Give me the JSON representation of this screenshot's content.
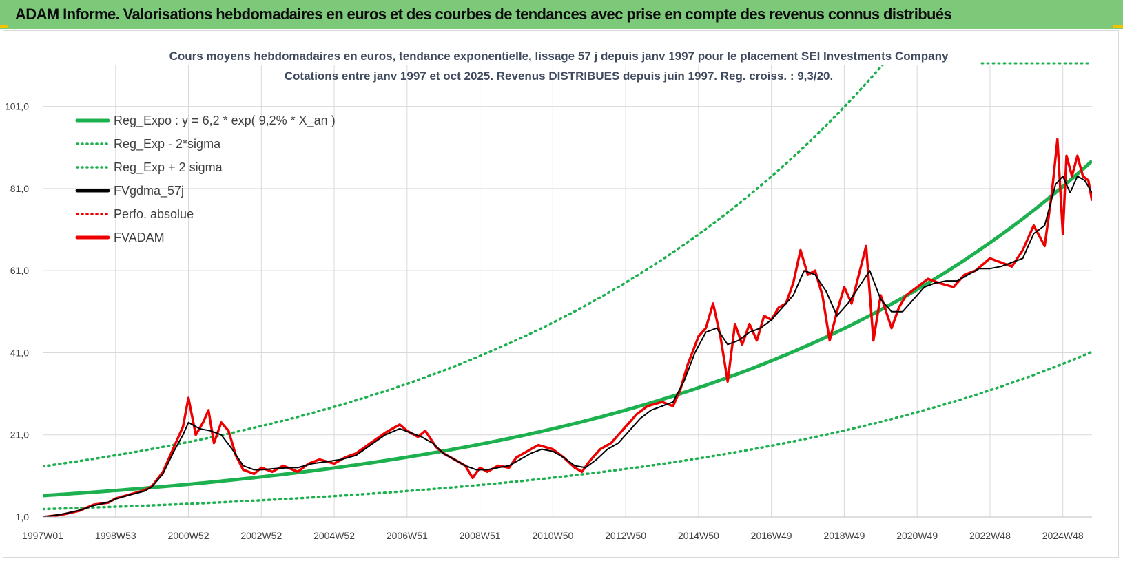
{
  "banner": {
    "title": "ADAM Informe. Valorisations hebdomadaires en euros et des courbes de tendances avec prise en compte des revenus connus distribués"
  },
  "colors": {
    "banner_bg": "#7dc97a",
    "reg_green": "#1cb04e",
    "series_red": "#ee0000",
    "series_black": "#000000",
    "grid": "#d9d9d9"
  },
  "chart_data": {
    "type": "line",
    "title_line1": "Cours moyens hebdomadaires en euros, tendance exponentielle, lissage 57 j depuis janv 1997 pour le placement SEI Investments Company",
    "title_line2": "Cotations entre janv 1997 et oct 2025. Revenus DISTRIBUES depuis juin 1997. Reg. croiss. : 9,3/20.",
    "xlabel": "",
    "ylabel": "",
    "ylim": [
      1,
      111
    ],
    "xlim": [
      1997.0,
      2025.8
    ],
    "yticks": [
      "1,0",
      "21,0",
      "41,0",
      "61,0",
      "81,0",
      "101,0"
    ],
    "ytick_values": [
      1,
      21,
      41,
      61,
      81,
      101
    ],
    "xticks": [
      "1997W01",
      "1998W53",
      "2000W52",
      "2002W52",
      "2004W52",
      "2006W51",
      "2008W51",
      "2010W50",
      "2012W50",
      "2014W50",
      "2016W49",
      "2018W49",
      "2020W49",
      "2022W48",
      "2024W48"
    ],
    "xtick_values": [
      1997.0,
      1999.0,
      2001.0,
      2003.0,
      2005.0,
      2007.0,
      2009.0,
      2011.0,
      2013.0,
      2015.0,
      2017.0,
      2019.0,
      2021.0,
      2023.0,
      2025.0
    ],
    "grid": true,
    "legend_position": "top-left",
    "legend": [
      {
        "label": "Reg_Expo : y = 6,2 * exp( 9,2% *  X_an )",
        "style": "solid",
        "color": "#1cb04e"
      },
      {
        "label": "Reg_Exp - 2*sigma",
        "style": "dotted",
        "color": "#1cb04e"
      },
      {
        "label": "Reg_Exp + 2 sigma",
        "style": "dotted",
        "color": "#1cb04e"
      },
      {
        "label": "FVgdma_57j",
        "style": "solid",
        "color": "#000000"
      },
      {
        "label": "Perfo. absolue",
        "style": "dotted",
        "color": "#ee0000"
      },
      {
        "label": "FVADAM",
        "style": "solid",
        "color": "#ee0000"
      }
    ],
    "regression": {
      "a": 6.2,
      "b": 0.092,
      "x0": 1997.0,
      "lower_factor": 0.47,
      "upper_factor": 2.15
    },
    "fvadam": {
      "x": [
        1997.0,
        1997.5,
        1998.0,
        1998.4,
        1998.8,
        1999.0,
        1999.4,
        1999.8,
        2000.0,
        2000.3,
        2000.6,
        2000.85,
        2001.0,
        2001.2,
        2001.4,
        2001.55,
        2001.7,
        2001.9,
        2002.1,
        2002.3,
        2002.5,
        2002.8,
        2003.0,
        2003.3,
        2003.6,
        2004.0,
        2004.3,
        2004.6,
        2005.0,
        2005.3,
        2005.6,
        2006.0,
        2006.4,
        2006.8,
        2007.0,
        2007.3,
        2007.5,
        2007.8,
        2008.0,
        2008.3,
        2008.6,
        2008.8,
        2009.0,
        2009.2,
        2009.5,
        2009.8,
        2010.0,
        2010.3,
        2010.6,
        2011.0,
        2011.3,
        2011.6,
        2011.8,
        2012.0,
        2012.3,
        2012.6,
        2013.0,
        2013.3,
        2013.6,
        2014.0,
        2014.3,
        2014.5,
        2014.7,
        2015.0,
        2015.2,
        2015.4,
        2015.6,
        2015.8,
        2016.0,
        2016.2,
        2016.4,
        2016.6,
        2016.8,
        2017.0,
        2017.2,
        2017.4,
        2017.6,
        2017.8,
        2018.0,
        2018.2,
        2018.4,
        2018.6,
        2018.8,
        2019.0,
        2019.2,
        2019.4,
        2019.6,
        2019.8,
        2020.0,
        2020.15,
        2020.3,
        2020.5,
        2020.7,
        2021.0,
        2021.3,
        2021.6,
        2022.0,
        2022.3,
        2022.6,
        2023.0,
        2023.3,
        2023.6,
        2023.9,
        2024.2,
        2024.5,
        2024.7,
        2024.85,
        2025.0,
        2025.1,
        2025.25,
        2025.4,
        2025.55,
        2025.7,
        2025.8
      ],
      "values": [
        1.0,
        1.5,
        2.5,
        4.0,
        4.5,
        5.5,
        6.5,
        7.5,
        8.5,
        12.0,
        18.0,
        23.0,
        30.0,
        21.0,
        24.0,
        27.0,
        19.0,
        24.0,
        22.0,
        16.0,
        12.5,
        11.5,
        13.0,
        12.0,
        13.5,
        12.0,
        14.0,
        15.0,
        14.0,
        15.5,
        16.5,
        19.0,
        21.5,
        23.5,
        22.0,
        20.5,
        22.0,
        18.0,
        16.5,
        15.0,
        13.5,
        10.5,
        13.0,
        12.0,
        13.5,
        13.0,
        15.5,
        17.0,
        18.5,
        17.5,
        15.5,
        13.0,
        12.0,
        14.5,
        17.5,
        19.0,
        23.0,
        26.0,
        28.0,
        29.0,
        28.0,
        32.0,
        38.0,
        45.0,
        47.0,
        53.0,
        45.0,
        34.0,
        48.0,
        43.0,
        48.0,
        44.0,
        50.0,
        49.0,
        52.0,
        53.0,
        58.0,
        66.0,
        60.0,
        61.0,
        55.0,
        44.0,
        51.0,
        57.0,
        53.0,
        60.0,
        67.0,
        44.0,
        55.0,
        51.0,
        47.0,
        52.0,
        55.0,
        57.0,
        59.0,
        58.0,
        57.0,
        60.0,
        61.0,
        64.0,
        63.0,
        62.0,
        66.0,
        72.0,
        67.0,
        80.0,
        93.0,
        70.0,
        89.0,
        84.0,
        89.0,
        84.0,
        83.0,
        78.0
      ]
    },
    "fvgdma_57j": {
      "x": [
        1997.0,
        1997.5,
        1998.0,
        1998.4,
        1998.8,
        1999.0,
        1999.4,
        1999.8,
        2000.0,
        2000.3,
        2000.6,
        2000.85,
        2001.0,
        2001.3,
        2001.6,
        2001.9,
        2002.2,
        2002.5,
        2002.8,
        2003.0,
        2003.4,
        2003.8,
        2004.0,
        2004.4,
        2004.8,
        2005.2,
        2005.6,
        2006.0,
        2006.4,
        2006.8,
        2007.1,
        2007.4,
        2007.7,
        2008.0,
        2008.3,
        2008.6,
        2008.9,
        2009.2,
        2009.5,
        2009.8,
        2010.1,
        2010.4,
        2010.7,
        2011.0,
        2011.3,
        2011.6,
        2011.9,
        2012.2,
        2012.5,
        2012.8,
        2013.1,
        2013.4,
        2013.7,
        2014.0,
        2014.3,
        2014.6,
        2014.9,
        2015.2,
        2015.5,
        2015.8,
        2016.1,
        2016.4,
        2016.7,
        2017.0,
        2017.3,
        2017.6,
        2017.9,
        2018.2,
        2018.5,
        2018.8,
        2019.1,
        2019.4,
        2019.7,
        2020.0,
        2020.3,
        2020.6,
        2020.9,
        2021.2,
        2021.5,
        2021.8,
        2022.1,
        2022.4,
        2022.7,
        2023.0,
        2023.3,
        2023.6,
        2023.9,
        2024.2,
        2024.5,
        2024.8,
        2025.0,
        2025.2,
        2025.4,
        2025.6,
        2025.8
      ],
      "values": [
        1.0,
        1.6,
        2.6,
        3.8,
        4.6,
        5.4,
        6.4,
        7.3,
        8.4,
        11.5,
        17.0,
        21.0,
        24.0,
        22.5,
        22.0,
        21.0,
        17.5,
        13.5,
        12.5,
        12.5,
        12.8,
        13.0,
        13.0,
        14.0,
        14.5,
        15.0,
        16.0,
        18.5,
        21.0,
        22.5,
        21.5,
        20.5,
        19.0,
        16.5,
        15.0,
        13.5,
        12.5,
        12.5,
        13.0,
        13.5,
        15.0,
        16.5,
        17.5,
        17.0,
        15.5,
        13.5,
        13.0,
        15.0,
        17.5,
        19.0,
        22.0,
        25.0,
        27.0,
        28.0,
        29.0,
        34.0,
        41.0,
        46.0,
        47.0,
        43.0,
        44.0,
        46.0,
        47.0,
        49.0,
        52.0,
        55.0,
        61.0,
        60.0,
        56.0,
        50.0,
        53.0,
        57.0,
        61.0,
        54.0,
        51.0,
        51.0,
        54.0,
        57.0,
        58.0,
        58.5,
        58.5,
        60.0,
        61.5,
        61.5,
        62.0,
        63.0,
        64.0,
        70.0,
        72.0,
        82.0,
        84.0,
        80.0,
        84.0,
        83.0,
        80.0
      ]
    }
  }
}
